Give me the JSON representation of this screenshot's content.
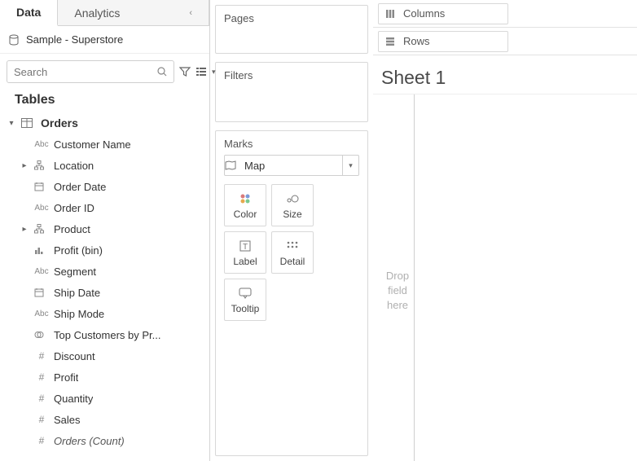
{
  "tabs": {
    "data": "Data",
    "analytics": "Analytics"
  },
  "datasource": {
    "name": "Sample - Superstore"
  },
  "search": {
    "placeholder": "Search"
  },
  "tables_header": "Tables",
  "table_name": "Orders",
  "fields": [
    {
      "icon": "Abc",
      "label": "Customer Name",
      "expand": false
    },
    {
      "icon": "hier",
      "label": "Location",
      "expand": true
    },
    {
      "icon": "date",
      "label": "Order Date",
      "expand": false
    },
    {
      "icon": "Abc",
      "label": "Order ID",
      "expand": false
    },
    {
      "icon": "hier",
      "label": "Product",
      "expand": true
    },
    {
      "icon": "bin",
      "label": "Profit (bin)",
      "expand": false
    },
    {
      "icon": "Abc",
      "label": "Segment",
      "expand": false
    },
    {
      "icon": "date",
      "label": "Ship Date",
      "expand": false
    },
    {
      "icon": "Abc",
      "label": "Ship Mode",
      "expand": false
    },
    {
      "icon": "set",
      "label": "Top Customers by Pr...",
      "expand": false
    },
    {
      "icon": "#",
      "label": "Discount",
      "expand": false
    },
    {
      "icon": "#",
      "label": "Profit",
      "expand": false
    },
    {
      "icon": "#",
      "label": "Quantity",
      "expand": false
    },
    {
      "icon": "#",
      "label": "Sales",
      "expand": false
    },
    {
      "icon": "#",
      "label": "Orders (Count)",
      "expand": false,
      "italic": true
    }
  ],
  "shelves": {
    "pages": "Pages",
    "filters": "Filters",
    "marks": "Marks"
  },
  "mark_type": "Map",
  "mark_buttons": [
    "Color",
    "Size",
    "Label",
    "Detail",
    "Tooltip"
  ],
  "columns_label": "Columns",
  "rows_label": "Rows",
  "sheet_title": "Sheet 1",
  "drop_hint": [
    "Drop",
    "field",
    "here"
  ],
  "colors": {
    "border": "#d4d4d4",
    "text": "#333333",
    "muted": "#777777",
    "bg": "#ffffff"
  }
}
